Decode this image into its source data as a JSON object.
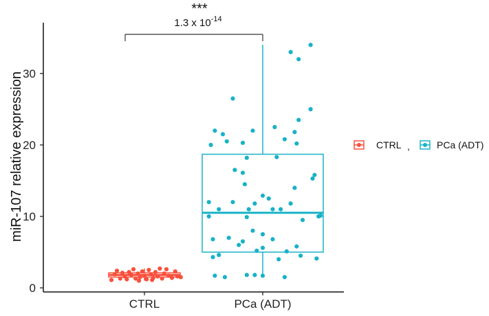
{
  "chart_data": {
    "type": "boxplot",
    "title": "",
    "xlabel": "",
    "ylabel": "miR-107 relative expression",
    "ylim": [
      0,
      35
    ],
    "yticks": [
      0,
      10,
      20,
      30
    ],
    "categories": [
      "CTRL",
      "PCa (ADT)"
    ],
    "series": [
      {
        "name": "CTRL",
        "color": "#F8503D",
        "box": {
          "min": 1.0,
          "q1": 1.5,
          "median": 1.8,
          "q3": 2.1,
          "max": 2.7
        },
        "points": [
          {
            "x": -0.3,
            "y": 1.1
          },
          {
            "x": -0.27,
            "y": 1.9
          },
          {
            "x": -0.25,
            "y": 2.4
          },
          {
            "x": -0.22,
            "y": 1.3
          },
          {
            "x": -0.2,
            "y": 2.1
          },
          {
            "x": -0.18,
            "y": 1.6
          },
          {
            "x": -0.16,
            "y": 1.2
          },
          {
            "x": -0.14,
            "y": 2.2
          },
          {
            "x": -0.12,
            "y": 1.8
          },
          {
            "x": -0.1,
            "y": 2.6
          },
          {
            "x": -0.08,
            "y": 1.3
          },
          {
            "x": -0.06,
            "y": 2.0
          },
          {
            "x": -0.04,
            "y": 1.5
          },
          {
            "x": -0.02,
            "y": 2.3
          },
          {
            "x": 0.0,
            "y": 1.7
          },
          {
            "x": 0.02,
            "y": 1.2
          },
          {
            "x": 0.04,
            "y": 2.5
          },
          {
            "x": 0.06,
            "y": 1.9
          },
          {
            "x": 0.08,
            "y": 1.4
          },
          {
            "x": 0.1,
            "y": 2.2
          },
          {
            "x": 0.12,
            "y": 1.6
          },
          {
            "x": 0.14,
            "y": 2.7
          },
          {
            "x": 0.16,
            "y": 1.3
          },
          {
            "x": 0.18,
            "y": 2.0
          },
          {
            "x": 0.2,
            "y": 2.6
          },
          {
            "x": 0.22,
            "y": 1.7
          },
          {
            "x": 0.25,
            "y": 1.4
          },
          {
            "x": 0.28,
            "y": 2.3
          },
          {
            "x": 0.3,
            "y": 1.6
          },
          {
            "x": 0.33,
            "y": 1.5
          },
          {
            "x": -0.05,
            "y": 1.0
          },
          {
            "x": 0.07,
            "y": 1.1
          }
        ]
      },
      {
        "name": "PCa (ADT)",
        "color": "#18B2C8",
        "box": {
          "min": 1.5,
          "q1": 5.0,
          "median": 10.5,
          "q3": 18.7,
          "max": 34.0
        },
        "points": [
          {
            "x": 0.14,
            "y": 33.0
          },
          {
            "x": 0.24,
            "y": 34.0
          },
          {
            "x": 0.18,
            "y": 32.0
          },
          {
            "x": -0.15,
            "y": 26.5
          },
          {
            "x": 0.24,
            "y": 25.0
          },
          {
            "x": 0.18,
            "y": 23.5
          },
          {
            "x": -0.24,
            "y": 22.0
          },
          {
            "x": -0.2,
            "y": 21.5
          },
          {
            "x": -0.05,
            "y": 22.0
          },
          {
            "x": 0.06,
            "y": 22.5
          },
          {
            "x": 0.16,
            "y": 21.8
          },
          {
            "x": -0.26,
            "y": 20.0
          },
          {
            "x": -0.18,
            "y": 20.5
          },
          {
            "x": -0.1,
            "y": 20.3
          },
          {
            "x": 0.11,
            "y": 20.8
          },
          {
            "x": 0.17,
            "y": 20.2
          },
          {
            "x": -0.08,
            "y": 18.2
          },
          {
            "x": 0.07,
            "y": 18.3
          },
          {
            "x": -0.14,
            "y": 16.5
          },
          {
            "x": -0.1,
            "y": 16.1
          },
          {
            "x": 0.26,
            "y": 15.8
          },
          {
            "x": 0.25,
            "y": 15.3
          },
          {
            "x": -0.09,
            "y": 14.5
          },
          {
            "x": 0.16,
            "y": 14.0
          },
          {
            "x": 0.0,
            "y": 12.9
          },
          {
            "x": 0.03,
            "y": 12.5
          },
          {
            "x": -0.27,
            "y": 12.0
          },
          {
            "x": -0.15,
            "y": 12.0
          },
          {
            "x": -0.04,
            "y": 11.8
          },
          {
            "x": 0.09,
            "y": 11.0
          },
          {
            "x": 0.14,
            "y": 11.8
          },
          {
            "x": -0.22,
            "y": 11.0
          },
          {
            "x": -0.07,
            "y": 11.0
          },
          {
            "x": 0.05,
            "y": 11.0
          },
          {
            "x": 0.29,
            "y": 10.1
          },
          {
            "x": 0.28,
            "y": 10.0
          },
          {
            "x": -0.27,
            "y": 10.0
          },
          {
            "x": -0.08,
            "y": 9.9
          },
          {
            "x": 0.2,
            "y": 9.5
          },
          {
            "x": -0.05,
            "y": 8.0
          },
          {
            "x": 0.0,
            "y": 7.5
          },
          {
            "x": -0.17,
            "y": 7.0
          },
          {
            "x": -0.25,
            "y": 6.8
          },
          {
            "x": -0.1,
            "y": 6.5
          },
          {
            "x": 0.05,
            "y": 6.8
          },
          {
            "x": -0.12,
            "y": 6.0
          },
          {
            "x": 0.0,
            "y": 5.6
          },
          {
            "x": 0.17,
            "y": 5.8
          },
          {
            "x": -0.03,
            "y": 5.2
          },
          {
            "x": 0.12,
            "y": 5.1
          },
          {
            "x": -0.22,
            "y": 4.6
          },
          {
            "x": -0.25,
            "y": 4.3
          },
          {
            "x": 0.19,
            "y": 4.5
          },
          {
            "x": 0.27,
            "y": 4.1
          },
          {
            "x": 0.08,
            "y": 4.0
          },
          {
            "x": -0.24,
            "y": 1.7
          },
          {
            "x": -0.19,
            "y": 1.5
          },
          {
            "x": -0.08,
            "y": 1.8
          },
          {
            "x": -0.04,
            "y": 1.8
          },
          {
            "x": 0.0,
            "y": 1.7
          },
          {
            "x": 0.11,
            "y": 1.5
          }
        ]
      }
    ],
    "significance": {
      "stars": "***",
      "p_value_base": "1.3 x 10",
      "p_value_exponent": "-14"
    },
    "legend": {
      "position": "right",
      "separator": ","
    }
  }
}
